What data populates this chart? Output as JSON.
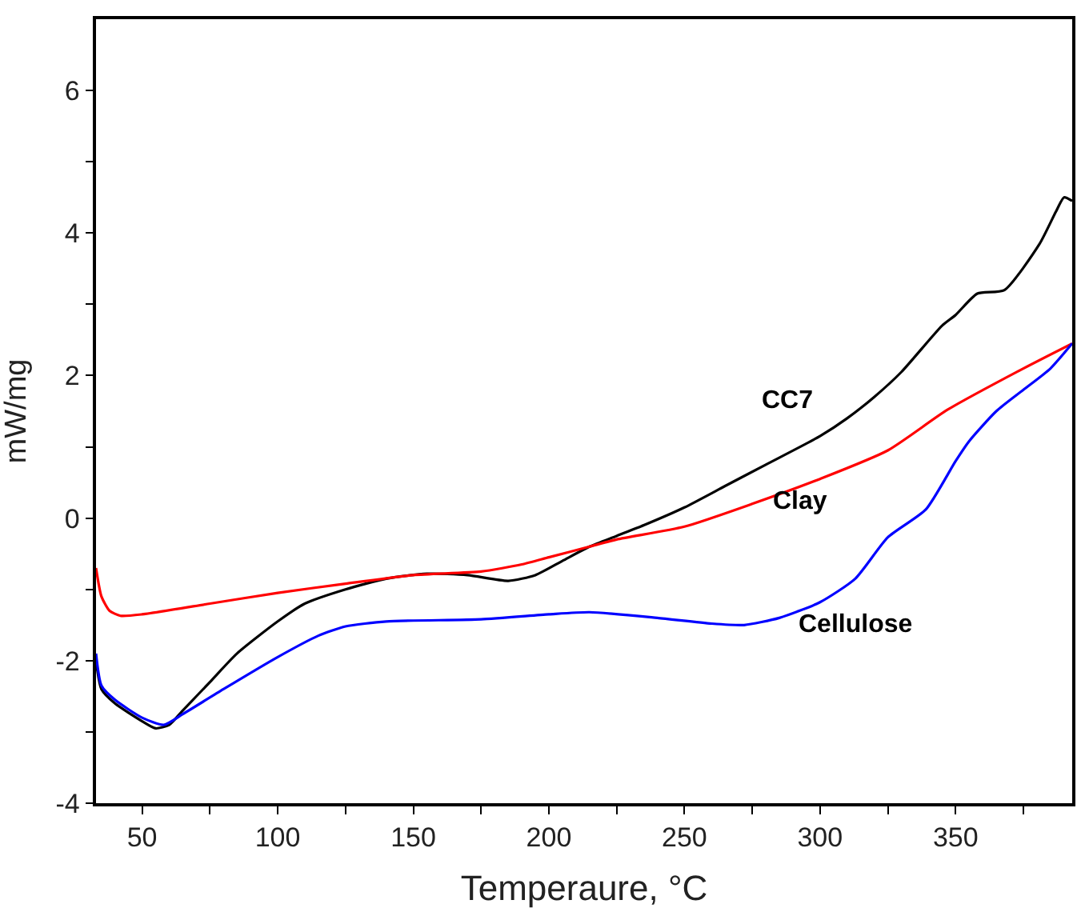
{
  "chart_data": {
    "type": "line",
    "xlabel": "Temperaure, °C",
    "ylabel": "mW/mg",
    "xlim": [
      33,
      393
    ],
    "ylim": [
      -4,
      7
    ],
    "xticks": [
      50,
      {
        "value": 75,
        "label": null
      },
      100,
      {
        "value": 125,
        "label": null
      },
      150,
      {
        "value": 175,
        "label": null
      },
      200,
      {
        "value": 225,
        "label": null
      },
      250,
      {
        "value": 275,
        "label": null
      },
      300,
      {
        "value": 325,
        "label": null
      },
      350,
      {
        "value": 375,
        "label": null
      }
    ],
    "yticks": [
      -4,
      {
        "value": -3,
        "label": null
      },
      -2,
      {
        "value": -1,
        "label": null
      },
      0,
      {
        "value": 1,
        "label": null
      },
      2,
      {
        "value": 3,
        "label": null
      },
      4,
      {
        "value": 5,
        "label": null
      },
      6
    ],
    "legend": false,
    "marker": "none",
    "line_style": "solid",
    "series": [
      {
        "name": "CC7",
        "color": "#000000",
        "x": [
          33,
          35,
          40,
          50,
          55,
          60,
          65,
          75,
          85,
          100,
          110,
          125,
          140,
          155,
          170,
          185,
          195,
          205,
          215,
          225,
          235,
          250,
          265,
          280,
          300,
          310,
          320,
          330,
          345,
          350,
          358,
          368,
          381,
          387,
          390,
          393
        ],
        "values": [
          -2.0,
          -2.4,
          -2.6,
          -2.85,
          -2.95,
          -2.9,
          -2.7,
          -2.3,
          -1.9,
          -1.45,
          -1.2,
          -1.0,
          -0.85,
          -0.78,
          -0.8,
          -0.88,
          -0.8,
          -0.6,
          -0.4,
          -0.25,
          -0.1,
          0.15,
          0.45,
          0.75,
          1.15,
          1.4,
          1.7,
          2.05,
          2.7,
          2.85,
          3.15,
          3.2,
          3.85,
          4.3,
          4.5,
          4.45
        ]
      },
      {
        "name": "Clay",
        "color": "#ff0000",
        "x": [
          33,
          35,
          38,
          42,
          50,
          75,
          100,
          125,
          150,
          175,
          190,
          200,
          215,
          225,
          250,
          275,
          300,
          325,
          347,
          375,
          393
        ],
        "values": [
          -0.7,
          -1.1,
          -1.3,
          -1.37,
          -1.35,
          -1.2,
          -1.05,
          -0.92,
          -0.8,
          -0.75,
          -0.65,
          -0.55,
          -0.4,
          -0.3,
          -0.12,
          0.2,
          0.55,
          0.95,
          1.52,
          2.1,
          2.45
        ]
      },
      {
        "name": "Cellulose",
        "color": "#0000ff",
        "x": [
          33,
          35,
          40,
          50,
          58,
          65,
          80,
          100,
          115,
          125,
          140,
          175,
          200,
          215,
          240,
          260,
          272,
          285,
          300,
          313,
          325,
          339,
          350,
          355,
          365,
          375,
          385,
          393
        ],
        "values": [
          -1.9,
          -2.35,
          -2.55,
          -2.8,
          -2.9,
          -2.75,
          -2.4,
          -1.95,
          -1.65,
          -1.52,
          -1.45,
          -1.42,
          -1.35,
          -1.32,
          -1.4,
          -1.48,
          -1.5,
          -1.4,
          -1.18,
          -0.85,
          -0.27,
          0.12,
          0.8,
          1.08,
          1.5,
          1.8,
          2.1,
          2.45
        ]
      }
    ]
  }
}
